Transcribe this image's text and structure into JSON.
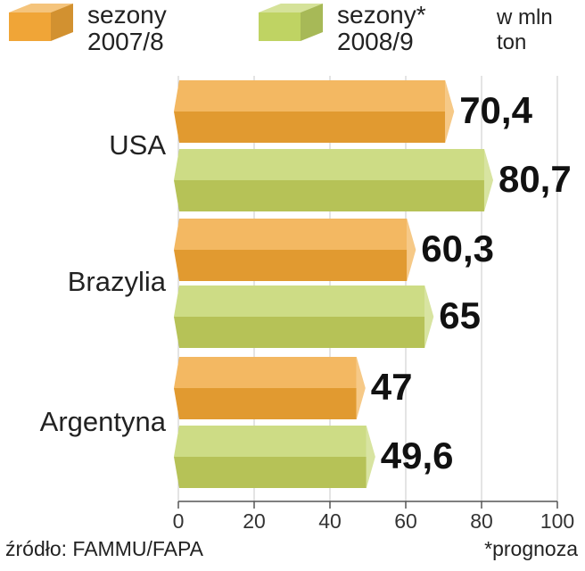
{
  "chart_data": {
    "type": "hbar",
    "unit": "w mln ton",
    "categories": [
      "USA",
      "Brazylia",
      "Argentyna"
    ],
    "series": [
      {
        "name": "sezony 2007/8",
        "color": "#f0a537",
        "values": [
          70.4,
          60.3,
          47
        ],
        "value_labels": [
          "70,4",
          "60,3",
          "47"
        ]
      },
      {
        "name": "sezony* 2008/9",
        "color": "#bfd363",
        "values": [
          80.7,
          65,
          49.6
        ],
        "value_labels": [
          "80,7",
          "65",
          "49,6"
        ]
      }
    ],
    "xlim": [
      0,
      100
    ],
    "xticks": [
      0,
      20,
      40,
      60,
      80,
      100
    ],
    "grid": true,
    "source": "źródło: FAMMU/FAPA",
    "note": "*prognoza"
  }
}
